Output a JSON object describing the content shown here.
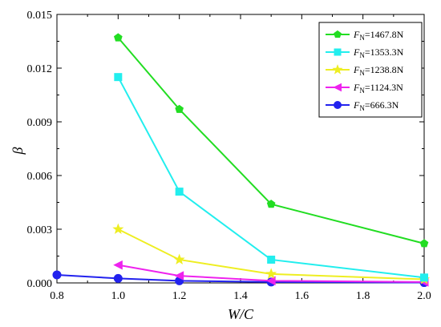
{
  "chart_data": {
    "type": "line",
    "xlabel": "W/C",
    "ylabel": "β",
    "xlim": [
      0.8,
      2.0
    ],
    "ylim": [
      0,
      0.015
    ],
    "x_ticks": [
      "0.8",
      "1.0",
      "1.2",
      "1.4",
      "1.6",
      "1.8",
      "2.0"
    ],
    "y_ticks": [
      "0.000",
      "0.003",
      "0.006",
      "0.009",
      "0.012",
      "0.015"
    ],
    "grid": false,
    "legend_position": "top-right",
    "series": [
      {
        "name": "F",
        "sub": "N",
        "value_text": "=1467.8N",
        "color": "#22dd22",
        "marker": "pentagon",
        "x": [
          1.0,
          1.2,
          1.5,
          2.0
        ],
        "y": [
          0.0137,
          0.0097,
          0.0044,
          0.0022
        ]
      },
      {
        "name": "F",
        "sub": "N",
        "value_text": "=1353.3N",
        "color": "#22eeee",
        "marker": "square",
        "x": [
          1.0,
          1.2,
          1.5,
          2.0
        ],
        "y": [
          0.0115,
          0.0051,
          0.0013,
          0.0003
        ]
      },
      {
        "name": "F",
        "sub": "N",
        "value_text": "=1238.8N",
        "color": "#eeee22",
        "marker": "star",
        "x": [
          1.0,
          1.2,
          1.5,
          2.0
        ],
        "y": [
          0.003,
          0.0013,
          0.0005,
          0.0002
        ]
      },
      {
        "name": "F",
        "sub": "N",
        "value_text": "=1124.3N",
        "color": "#ee22ee",
        "marker": "triangle-left",
        "x": [
          1.0,
          1.2,
          1.5,
          2.0
        ],
        "y": [
          0.001,
          0.0004,
          0.00012,
          5e-05
        ]
      },
      {
        "name": "F",
        "sub": "N",
        "value_text": "=666.3N",
        "color": "#2222ee",
        "marker": "circle",
        "x": [
          0.8,
          1.0,
          1.2,
          1.5,
          2.0
        ],
        "y": [
          0.00045,
          0.00025,
          0.00012,
          5e-05,
          2e-05
        ]
      }
    ]
  }
}
